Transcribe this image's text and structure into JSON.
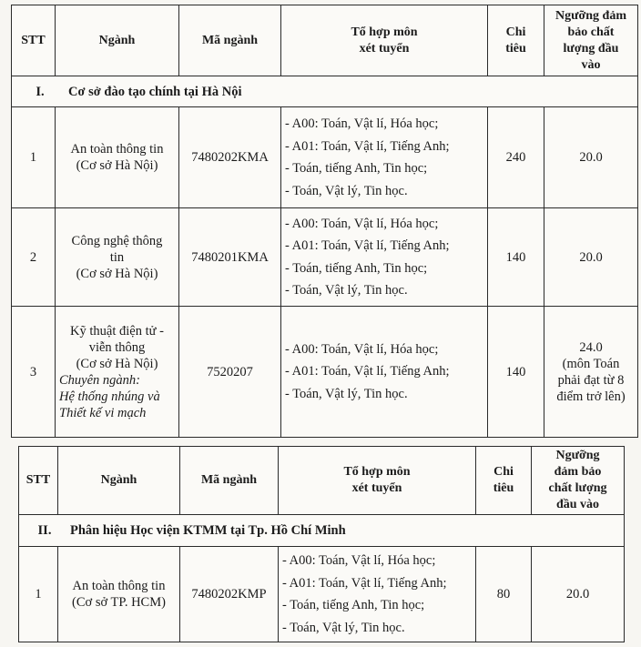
{
  "headers": {
    "stt": "STT",
    "nganh": "Ngành",
    "ma_nganh": "Mã ngành",
    "to_hop_1": "Tổ hợp môn",
    "to_hop_2": "xét tuyển",
    "chi_tieu_1": "Chi",
    "chi_tieu_2": "tiêu",
    "nguong_t1": [
      "Ngưỡng đảm",
      "bảo chất",
      "lượng đầu",
      "vào"
    ],
    "nguong_t2": [
      "Ngưỡng",
      "đảm bảo",
      "chất lượng",
      "đầu vào"
    ]
  },
  "table1": {
    "section": {
      "num": "I.",
      "title": "Cơ sở đào tạo chính tại Hà Nội"
    },
    "rows": [
      {
        "stt": "1",
        "nganh": [
          "An toàn thông tin",
          "(Cơ sở Hà Nội)"
        ],
        "ma": "7480202KMA",
        "to_hop": [
          "- A00: Toán, Vật lí, Hóa học;",
          "- A01: Toán, Vật lí, Tiếng Anh;",
          "- Toán, tiếng Anh, Tin học;",
          "- Toán, Vật lý, Tin học."
        ],
        "chi_tieu": "240",
        "nguong": [
          "20.0"
        ]
      },
      {
        "stt": "2",
        "nganh": [
          "Công nghệ thông",
          "tin",
          "(Cơ sở Hà Nội)"
        ],
        "ma": "7480201KMA",
        "to_hop": [
          "- A00: Toán, Vật lí, Hóa học;",
          "- A01: Toán, Vật lí, Tiếng Anh;",
          "- Toán, tiếng Anh, Tin học;",
          "- Toán, Vật lý, Tin học."
        ],
        "chi_tieu": "140",
        "nguong": [
          "20.0"
        ]
      },
      {
        "stt": "3",
        "nganh": [
          "Kỹ thuật điện tử -",
          "viễn thông",
          "(Cơ sở Hà Nội)"
        ],
        "chuyen_nganh": [
          "Chuyên ngành:",
          "Hệ thống nhúng và",
          "Thiết kế vi mạch"
        ],
        "ma": "7520207",
        "to_hop": [
          "- A00: Toán, Vật lí, Hóa học;",
          "- A01: Toán, Vật lí, Tiếng Anh;",
          "- Toán, Vật lý, Tin học."
        ],
        "chi_tieu": "140",
        "nguong": [
          "24.0",
          "(môn Toán",
          "phải đạt từ 8",
          "điểm trở lên)"
        ]
      }
    ]
  },
  "table2": {
    "section": {
      "num": "II.",
      "title": "Phân hiệu Học viện KTMM tại Tp. Hồ Chí Minh"
    },
    "rows": [
      {
        "stt": "1",
        "nganh": [
          "An toàn thông tin",
          "(Cơ sở TP. HCM)"
        ],
        "ma": "7480202KMP",
        "to_hop": [
          "- A00: Toán, Vật lí, Hóa học;",
          "- A01: Toán, Vật lí, Tiếng Anh;",
          "- Toán, tiếng Anh, Tin học;",
          "- Toán, Vật lý, Tin học."
        ],
        "chi_tieu": "80",
        "nguong": [
          "20.0"
        ]
      }
    ]
  }
}
